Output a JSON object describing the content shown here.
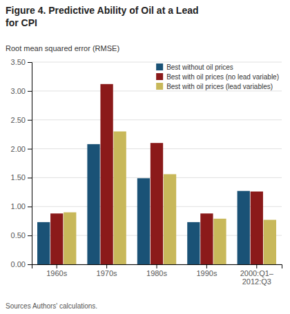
{
  "chart_data": {
    "type": "bar",
    "title": "Figure 4. Predictive Ability of Oil at a Lead\nfor CPI",
    "ylabel": "Root mean squared error (RMSE)",
    "source": "Sources Authors' calculations.",
    "categories": [
      "1960s",
      "1970s",
      "1980s",
      "1990s",
      "2000:Q1–\n2012:Q3"
    ],
    "series": [
      {
        "name": "Best without oil prices",
        "color": "#1a5276",
        "values": [
          0.73,
          2.08,
          1.49,
          0.73,
          1.27
        ]
      },
      {
        "name": "Best with oil prices (no lead variable)",
        "color": "#8b1a1a",
        "values": [
          0.88,
          3.12,
          2.1,
          0.88,
          1.26
        ]
      },
      {
        "name": "Best with oil prices (lead variables)",
        "color": "#c8b85a",
        "values": [
          0.9,
          2.3,
          1.56,
          0.79,
          0.77
        ]
      }
    ],
    "ylim": [
      0,
      3.5
    ],
    "yticks": [
      {
        "value": 0.0,
        "label": "0.00"
      },
      {
        "value": 0.5,
        "label": "0.50"
      },
      {
        "value": 1.0,
        "label": "1.00"
      },
      {
        "value": 1.5,
        "label": "1.50"
      },
      {
        "value": 2.0,
        "label": "2.00"
      },
      {
        "value": 2.5,
        "label": "2.50"
      },
      {
        "value": 3.0,
        "label": "3.00"
      },
      {
        "value": 3.5,
        "label": "3.50"
      }
    ],
    "grid": true,
    "legend": "upper right"
  }
}
